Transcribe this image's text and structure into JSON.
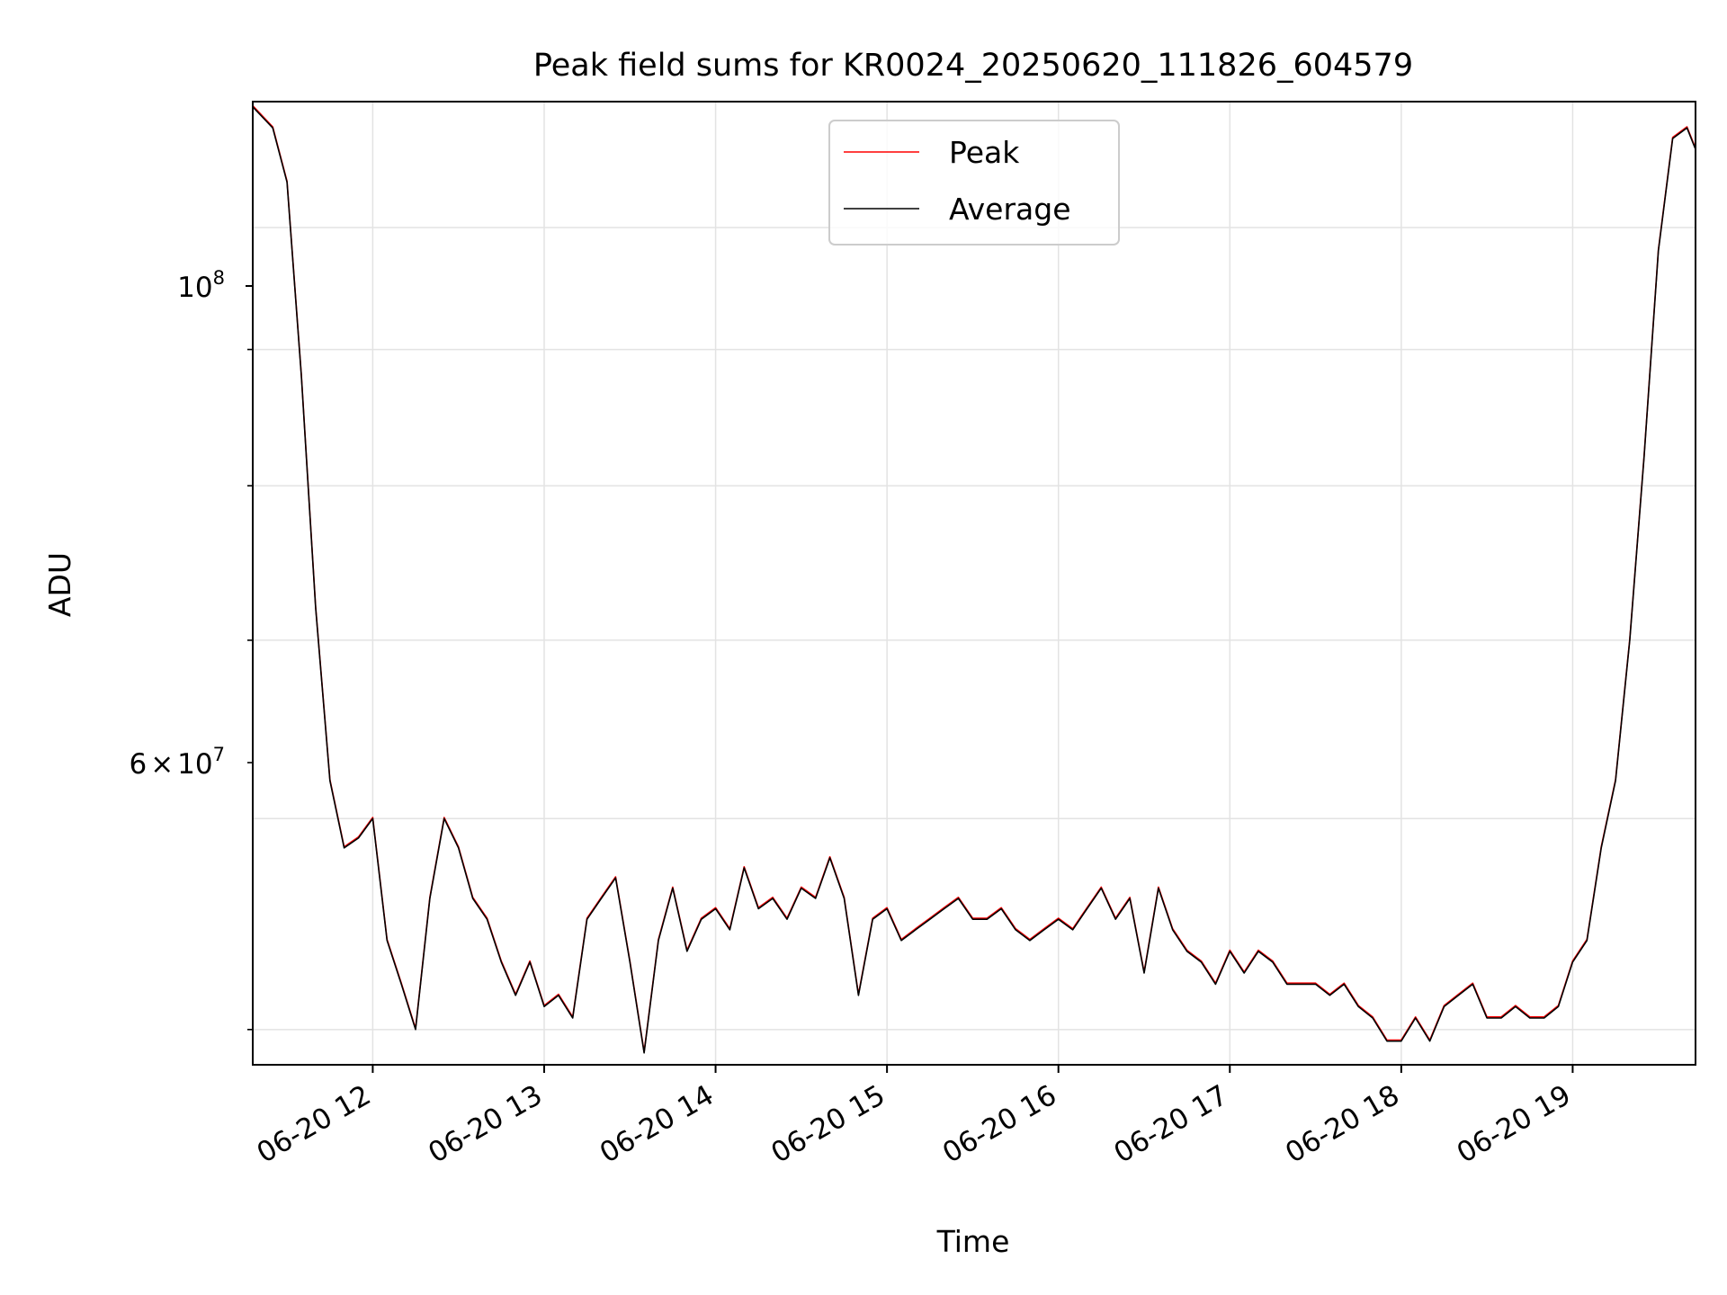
{
  "chart_data": {
    "type": "line",
    "title": "Peak field sums for KR0024_20250620_111826_604579",
    "xlabel": "Time",
    "ylabel": "ADU",
    "x_ticks": [
      "06-20 12",
      "06-20 13",
      "06-20 14",
      "06-20 15",
      "06-20 16",
      "06-20 17",
      "06-20 18",
      "06-20 19"
    ],
    "y_tick_major": {
      "base": "10",
      "exp": "8"
    },
    "y_tick_minor": {
      "mant": "6",
      "times": "×",
      "base": "10",
      "exp": "7"
    },
    "y_scale": "log",
    "ylim": [
      48500000,
      111500000
    ],
    "xlim": [
      "2025-06-20 11:18",
      "2025-06-20 19:43"
    ],
    "grid": true,
    "legend_position": "upper center",
    "series": [
      {
        "name": "Peak",
        "color": "#ff0000"
      },
      {
        "name": "Average",
        "color": "#000000"
      }
    ],
    "x": [
      "11:18",
      "11:25",
      "11:30",
      "11:35",
      "11:40",
      "11:45",
      "11:50",
      "11:55",
      "12:00",
      "12:05",
      "12:10",
      "12:15",
      "12:20",
      "12:25",
      "12:30",
      "12:35",
      "12:40",
      "12:45",
      "12:50",
      "12:55",
      "13:00",
      "13:05",
      "13:10",
      "13:15",
      "13:20",
      "13:25",
      "13:30",
      "13:35",
      "13:40",
      "13:45",
      "13:50",
      "13:55",
      "14:00",
      "14:05",
      "14:10",
      "14:15",
      "14:20",
      "14:25",
      "14:30",
      "14:35",
      "14:40",
      "14:45",
      "14:50",
      "14:55",
      "15:00",
      "15:05",
      "15:10",
      "15:15",
      "15:20",
      "15:25",
      "15:30",
      "15:35",
      "15:40",
      "15:45",
      "15:50",
      "15:55",
      "16:00",
      "16:05",
      "16:10",
      "16:15",
      "16:20",
      "16:25",
      "16:30",
      "16:35",
      "16:40",
      "16:45",
      "16:50",
      "16:55",
      "17:00",
      "17:05",
      "17:10",
      "17:15",
      "17:20",
      "17:25",
      "17:30",
      "17:35",
      "17:40",
      "17:45",
      "17:50",
      "17:55",
      "18:00",
      "18:05",
      "18:10",
      "18:15",
      "18:20",
      "18:25",
      "18:30",
      "18:35",
      "18:40",
      "18:45",
      "18:50",
      "18:55",
      "19:00",
      "19:05",
      "19:10",
      "19:15",
      "19:20",
      "19:25",
      "19:30",
      "19:35",
      "19:40",
      "19:43"
    ],
    "values": [
      111000000,
      109000000,
      104000000,
      88000000,
      72000000,
      62000000,
      58500000,
      59000000,
      60000000,
      54000000,
      52000000,
      50000000,
      56000000,
      60000000,
      58500000,
      56000000,
      55000000,
      53000000,
      51500000,
      53000000,
      51000000,
      51500000,
      50500000,
      55000000,
      56000000,
      57000000,
      53000000,
      49000000,
      54000000,
      56500000,
      53500000,
      55000000,
      55500000,
      54500000,
      57500000,
      55500000,
      56000000,
      55000000,
      56500000,
      56000000,
      58000000,
      56000000,
      51500000,
      55000000,
      55500000,
      54000000,
      54500000,
      55000000,
      55500000,
      56000000,
      55000000,
      55000000,
      55500000,
      54500000,
      54000000,
      54500000,
      55000000,
      54500000,
      55500000,
      56500000,
      55000000,
      56000000,
      52500000,
      56500000,
      54500000,
      53500000,
      53000000,
      52000000,
      53500000,
      52500000,
      53500000,
      53000000,
      52000000,
      52000000,
      52000000,
      51500000,
      52000000,
      51000000,
      50500000,
      49500000,
      49500000,
      50500000,
      49500000,
      51000000,
      51500000,
      52000000,
      50500000,
      50500000,
      51000000,
      50500000,
      50500000,
      51000000,
      53000000,
      54000000,
      58500000,
      62000000,
      70000000,
      82000000,
      98000000,
      108000000,
      109000000,
      107000000
    ]
  },
  "legend": {
    "peak": "Peak",
    "average": "Average"
  }
}
